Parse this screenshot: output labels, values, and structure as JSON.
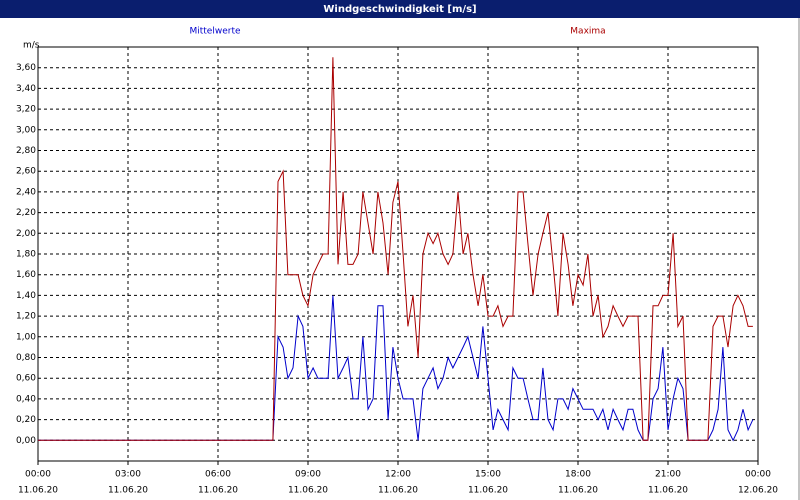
{
  "chart_data": {
    "type": "line",
    "title": "Windgeschwindigkeit [m/s]",
    "y_label": "m/s",
    "xlim": [
      0,
      24
    ],
    "ylim": [
      -0.2,
      3.8
    ],
    "grid": true,
    "xticks": [
      {
        "value": 0,
        "label": "00:00",
        "date": "11.06.20"
      },
      {
        "value": 3,
        "label": "03:00",
        "date": "11.06.20"
      },
      {
        "value": 6,
        "label": "06:00",
        "date": "11.06.20"
      },
      {
        "value": 9,
        "label": "09:00",
        "date": "11.06.20"
      },
      {
        "value": 12,
        "label": "12:00",
        "date": "11.06.20"
      },
      {
        "value": 15,
        "label": "15:00",
        "date": "11.06.20"
      },
      {
        "value": 18,
        "label": "18:00",
        "date": "11.06.20"
      },
      {
        "value": 21,
        "label": "21:00",
        "date": "11.06.20"
      },
      {
        "value": 24,
        "label": "00:00",
        "date": "12.06.20"
      }
    ],
    "yticks": [
      {
        "value": 0,
        "label": "0,00"
      },
      {
        "value": 0.2,
        "label": "0,20"
      },
      {
        "value": 0.4,
        "label": "0,40"
      },
      {
        "value": 0.6,
        "label": "0,60"
      },
      {
        "value": 0.8,
        "label": "0,80"
      },
      {
        "value": 1.0,
        "label": "1,00"
      },
      {
        "value": 1.2,
        "label": "1,20"
      },
      {
        "value": 1.4,
        "label": "1,40"
      },
      {
        "value": 1.6,
        "label": "1,60"
      },
      {
        "value": 1.8,
        "label": "1,80"
      },
      {
        "value": 2.0,
        "label": "2,00"
      },
      {
        "value": 2.2,
        "label": "2,20"
      },
      {
        "value": 2.4,
        "label": "2,40"
      },
      {
        "value": 2.6,
        "label": "2,60"
      },
      {
        "value": 2.8,
        "label": "2,80"
      },
      {
        "value": 3.0,
        "label": "3,00"
      },
      {
        "value": 3.2,
        "label": "3,20"
      },
      {
        "value": 3.4,
        "label": "3,40"
      },
      {
        "value": 3.6,
        "label": "3,60"
      }
    ],
    "x": [
      0,
      7.83,
      8,
      8.17,
      8.33,
      8.5,
      8.67,
      8.83,
      9,
      9.17,
      9.33,
      9.5,
      9.67,
      9.83,
      10,
      10.17,
      10.33,
      10.5,
      10.67,
      10.83,
      11,
      11.17,
      11.33,
      11.5,
      11.67,
      11.83,
      12,
      12.17,
      12.33,
      12.5,
      12.67,
      12.83,
      13,
      13.17,
      13.33,
      13.5,
      13.67,
      13.83,
      14,
      14.17,
      14.33,
      14.5,
      14.67,
      14.83,
      15,
      15.17,
      15.33,
      15.5,
      15.67,
      15.83,
      16,
      16.17,
      16.33,
      16.5,
      16.67,
      16.83,
      17,
      17.17,
      17.33,
      17.5,
      17.67,
      17.83,
      18,
      18.17,
      18.33,
      18.5,
      18.67,
      18.83,
      19,
      19.17,
      19.33,
      19.5,
      19.67,
      19.83,
      20,
      20.17,
      20.33,
      20.5,
      20.67,
      20.83,
      21,
      21.17,
      21.33,
      21.5,
      21.67,
      21.83,
      22,
      22.17,
      22.33,
      22.5,
      22.67,
      22.83,
      23,
      23.17,
      23.33,
      23.5,
      23.67,
      23.83
    ],
    "series": [
      {
        "name": "Mittelwerte",
        "color": "#0000cc",
        "values": [
          0,
          0,
          1.0,
          0.9,
          0.6,
          0.7,
          1.2,
          1.1,
          0.6,
          0.7,
          0.6,
          0.6,
          0.6,
          1.4,
          0.6,
          0.7,
          0.8,
          0.4,
          0.4,
          1.0,
          0.3,
          0.4,
          1.3,
          1.3,
          0.2,
          0.9,
          0.6,
          0.4,
          0.4,
          0.4,
          0.0,
          0.5,
          0.6,
          0.7,
          0.5,
          0.6,
          0.8,
          0.7,
          0.8,
          0.9,
          1.0,
          0.8,
          0.6,
          1.1,
          0.6,
          0.1,
          0.3,
          0.2,
          0.1,
          0.7,
          0.6,
          0.6,
          0.4,
          0.2,
          0.2,
          0.7,
          0.2,
          0.1,
          0.4,
          0.4,
          0.3,
          0.5,
          0.4,
          0.3,
          0.3,
          0.3,
          0.2,
          0.3,
          0.1,
          0.3,
          0.2,
          0.1,
          0.3,
          0.3,
          0.1,
          0,
          0,
          0.4,
          0.5,
          0.9,
          0.1,
          0.4,
          0.6,
          0.5,
          0,
          0,
          0,
          0,
          0,
          0.1,
          0.3,
          0.9,
          0.1,
          0,
          0.1,
          0.3,
          0.1,
          0.2
        ]
      },
      {
        "name": "Maxima",
        "color": "#aa0000",
        "values": [
          0,
          0,
          2.5,
          2.6,
          1.6,
          1.6,
          1.6,
          1.4,
          1.3,
          1.6,
          1.7,
          1.8,
          1.8,
          3.7,
          1.7,
          2.4,
          1.7,
          1.7,
          1.8,
          2.4,
          2.1,
          1.8,
          2.4,
          2.1,
          1.6,
          2.3,
          2.5,
          1.8,
          1.1,
          1.4,
          0.8,
          1.8,
          2.0,
          1.9,
          2.0,
          1.8,
          1.7,
          1.8,
          2.4,
          1.8,
          2.0,
          1.6,
          1.3,
          1.6,
          1.2,
          1.2,
          1.3,
          1.1,
          1.2,
          1.2,
          2.4,
          2.4,
          1.9,
          1.4,
          1.8,
          2.0,
          2.2,
          1.7,
          1.2,
          2.0,
          1.7,
          1.3,
          1.6,
          1.5,
          1.8,
          1.2,
          1.4,
          1.0,
          1.1,
          1.3,
          1.2,
          1.1,
          1.2,
          1.2,
          1.2,
          0,
          0,
          1.3,
          1.3,
          1.4,
          1.4,
          2.0,
          1.1,
          1.2,
          0,
          0,
          0,
          0,
          0,
          1.1,
          1.2,
          1.2,
          0.9,
          1.3,
          1.4,
          1.3,
          1.1,
          1.1
        ]
      }
    ]
  }
}
